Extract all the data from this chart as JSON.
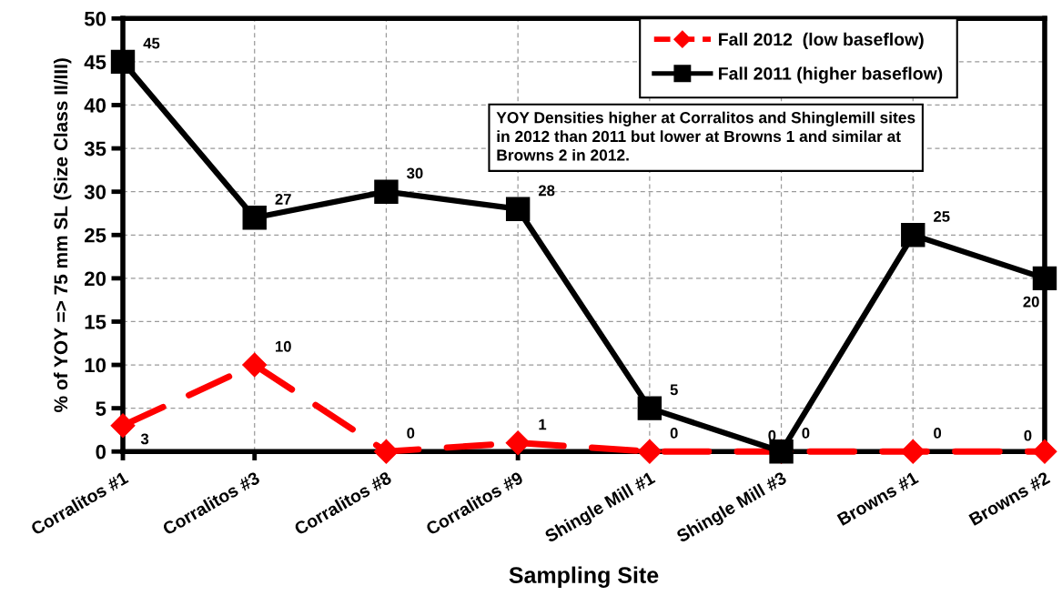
{
  "chart_data": {
    "type": "line",
    "xlabel": "Sampling Site",
    "ylabel": "% of YOY => 75 mm SL (Size Class II/III)",
    "categories": [
      "Corralitos #1",
      "Corralitos #3",
      "Corralitos #8",
      "Corralitos #9",
      "Shingle Mill #1",
      "Shingle Mill #3",
      "Browns #1",
      "Browns #2"
    ],
    "series": [
      {
        "name": "Fall 2012  (low baseflow)",
        "color": "#ff0000",
        "values": [
          3,
          10,
          0,
          1,
          0,
          0,
          0,
          0
        ],
        "marker": "diamond",
        "line_style": "dashed"
      },
      {
        "name": "Fall 2011 (higher baseflow)",
        "color": "#000000",
        "values": [
          45,
          27,
          30,
          28,
          5,
          0,
          25,
          20
        ],
        "marker": "square",
        "line_style": "solid"
      }
    ],
    "ylim": [
      0,
      50
    ],
    "yticks": [
      0,
      5,
      10,
      15,
      20,
      25,
      30,
      35,
      40,
      45,
      50
    ],
    "grid": true,
    "legend": "top right",
    "data_labels": true,
    "annotations": [
      "YOY Densities higher at Corralitos and Shinglemill sites in 2012 than 2011 but lower at Browns 1 and similar at Browns 2 in 2012."
    ]
  }
}
